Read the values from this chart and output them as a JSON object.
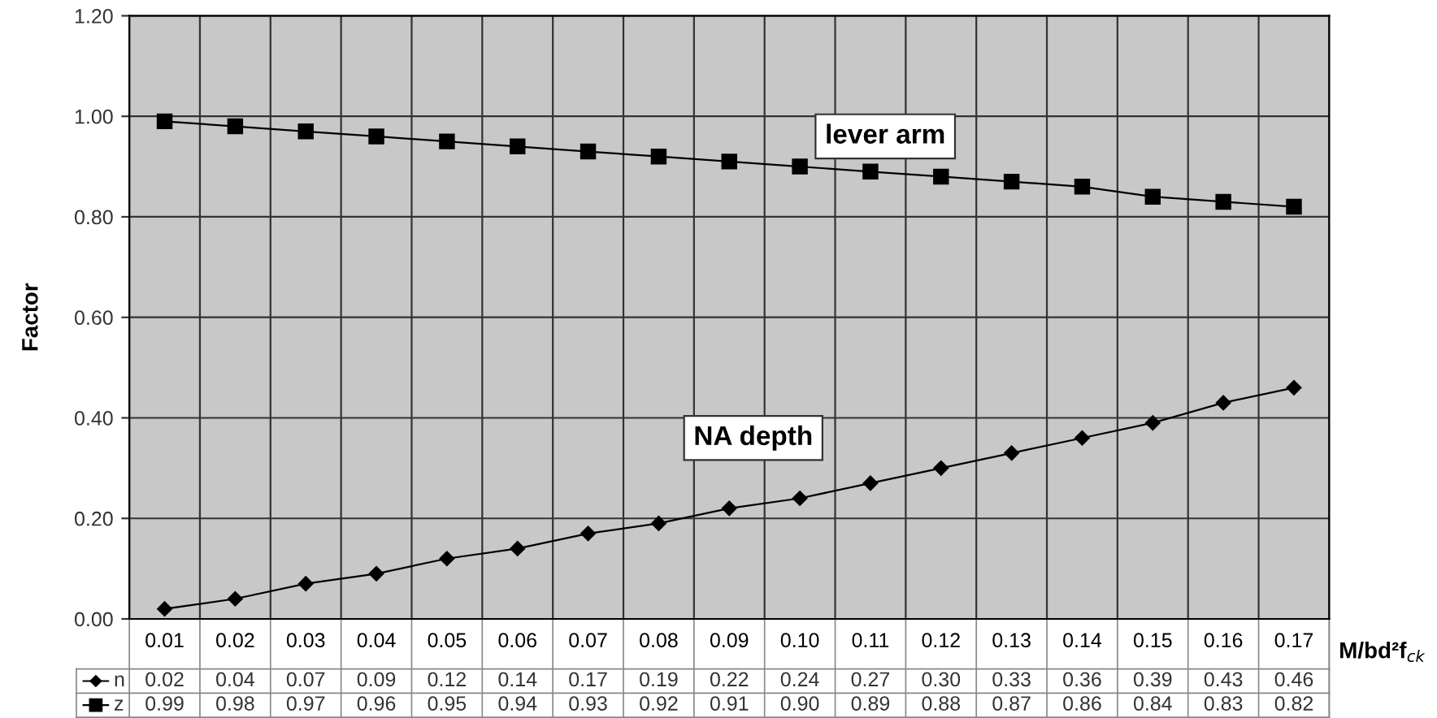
{
  "chart_data": {
    "type": "line",
    "ylabel": "Factor",
    "xlabel": "M/bd²f$_{ck}$",
    "categories": [
      "0.01",
      "0.02",
      "0.03",
      "0.04",
      "0.05",
      "0.06",
      "0.07",
      "0.08",
      "0.09",
      "0.10",
      "0.11",
      "0.12",
      "0.13",
      "0.14",
      "0.15",
      "0.16",
      "0.17"
    ],
    "series": [
      {
        "name": "n",
        "color": "#000000",
        "marker": "diamond",
        "values": [
          0.02,
          0.04,
          0.07,
          0.09,
          0.12,
          0.14,
          0.17,
          0.19,
          0.22,
          0.24,
          0.27,
          0.3,
          0.33,
          0.36,
          0.39,
          0.43,
          0.46
        ],
        "value_labels": [
          "0.02",
          "0.04",
          "0.07",
          "0.09",
          "0.12",
          "0.14",
          "0.17",
          "0.19",
          "0.22",
          "0.24",
          "0.27",
          "0.30",
          "0.33",
          "0.36",
          "0.39",
          "0.43",
          "0.46"
        ]
      },
      {
        "name": "z",
        "color": "#000000",
        "marker": "square",
        "values": [
          0.99,
          0.98,
          0.97,
          0.96,
          0.95,
          0.94,
          0.93,
          0.92,
          0.91,
          0.9,
          0.89,
          0.88,
          0.87,
          0.86,
          0.84,
          0.83,
          0.82
        ],
        "value_labels": [
          "0.99",
          "0.98",
          "0.97",
          "0.96",
          "0.95",
          "0.94",
          "0.93",
          "0.92",
          "0.91",
          "0.90",
          "0.89",
          "0.88",
          "0.87",
          "0.86",
          "0.84",
          "0.83",
          "0.82"
        ]
      }
    ],
    "ylim": [
      0,
      1.2
    ],
    "yticks": [
      {
        "value": 0,
        "label": "0.00"
      },
      {
        "value": 0.2,
        "label": "0.20"
      },
      {
        "value": 0.4,
        "label": "0.40"
      },
      {
        "value": 0.6,
        "label": "0.60"
      },
      {
        "value": 0.8,
        "label": "0.80"
      },
      {
        "value": 1.0,
        "label": "1.00"
      },
      {
        "value": 1.2,
        "label": "1.20"
      }
    ],
    "grid": true,
    "legend": "bottom left",
    "annotations": [
      "lever arm",
      "NA depth"
    ]
  }
}
